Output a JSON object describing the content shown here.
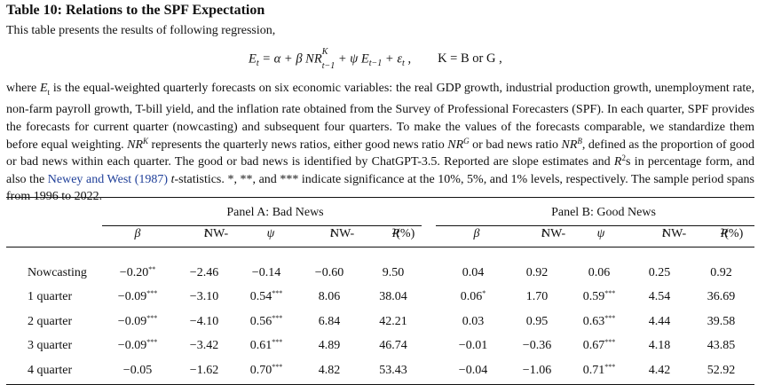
{
  "title": "Table 10: Relations to the SPF Expectation",
  "intro": "This table presents the results of following regression,",
  "equation": {
    "lhs": "E",
    "lhs_sub": "t",
    "eq": " = α + β NR",
    "nr_sup": "K",
    "nr_sub": "t−1",
    "mid": " + ψ E",
    "e_sub": "t−1",
    "eps": " + ε",
    "eps_sub": "t",
    "comma": " ,",
    "k_text": "K = B or G ,"
  },
  "body": {
    "p1": "where ",
    "p1_sym": "E",
    "p1_sub": "t",
    "p2": " is the equal-weighted quarterly forecasts on six economic variables: the real GDP growth, industrial production growth, unemployment rate, non-farm payroll growth, T-bill yield, and the inflation rate obtained from the Survey of Professional Forecasters (SPF). In each quarter, SPF provides the forecasts for current quarter (nowcasting) and subsequent four quarters. To make the values of the forecasts comparable, we standardize them before equal weighting. ",
    "nrk": "NR",
    "nrk_sup": "K",
    "p3": " represents the quarterly news ratios, either good news ratio ",
    "nrg": "NR",
    "nrg_sup": "G",
    "p4": " or bad news ratio ",
    "nrb": "NR",
    "nrb_sup": "B",
    "p5": ", defined as the proportion of good or bad news within each quarter. The good or bad news is identified by ChatGPT-3.5. Reported are slope estimates and ",
    "r2": "R",
    "r2_sup": "2",
    "p6": "s in percentage form, and also the ",
    "cite": "Newey and West (1987)",
    "p7_t": "t",
    "p7": "-statistics. *, **, and *** indicate significance at the 10%, 5%, and 1% levels, respectively. The sample period spans from 1996 to 2022."
  },
  "table": {
    "panel_a": "Panel A: Bad News",
    "panel_b": "Panel B: Good News",
    "columns": [
      "β",
      "NW-",
      "ψ",
      "NW-",
      "R",
      "β",
      "NW-",
      "ψ",
      "NW-",
      "R"
    ],
    "col_t": "t",
    "col_r2_sup": "2",
    "col_r2_pct": " (%)",
    "rows": [
      {
        "label": "Nowcasting",
        "a_beta": "−0.20",
        "a_beta_s": "**",
        "a_nw1": "−2.46",
        "a_psi": "−0.14",
        "a_psi_s": "",
        "a_nw2": "−0.60",
        "a_r2": "9.50",
        "b_beta": "0.04",
        "b_beta_s": "",
        "b_nw1": "0.92",
        "b_psi": "0.06",
        "b_psi_s": "",
        "b_nw2": "0.25",
        "b_r2": "0.92"
      },
      {
        "label": "1 quarter",
        "a_beta": "−0.09",
        "a_beta_s": "***",
        "a_nw1": "−3.10",
        "a_psi": "0.54",
        "a_psi_s": "***",
        "a_nw2": "8.06",
        "a_r2": "38.04",
        "b_beta": "0.06",
        "b_beta_s": "*",
        "b_nw1": "1.70",
        "b_psi": "0.59",
        "b_psi_s": "***",
        "b_nw2": "4.54",
        "b_r2": "36.69"
      },
      {
        "label": "2 quarter",
        "a_beta": "−0.09",
        "a_beta_s": "***",
        "a_nw1": "−4.10",
        "a_psi": "0.56",
        "a_psi_s": "***",
        "a_nw2": "6.84",
        "a_r2": "42.21",
        "b_beta": "0.03",
        "b_beta_s": "",
        "b_nw1": "0.95",
        "b_psi": "0.63",
        "b_psi_s": "***",
        "b_nw2": "4.44",
        "b_r2": "39.58"
      },
      {
        "label": "3 quarter",
        "a_beta": "−0.09",
        "a_beta_s": "***",
        "a_nw1": "−3.42",
        "a_psi": "0.61",
        "a_psi_s": "***",
        "a_nw2": "4.89",
        "a_r2": "46.74",
        "b_beta": "−0.01",
        "b_beta_s": "",
        "b_nw1": "−0.36",
        "b_psi": "0.67",
        "b_psi_s": "***",
        "b_nw2": "4.18",
        "b_r2": "43.85"
      },
      {
        "label": "4 quarter",
        "a_beta": "−0.05",
        "a_beta_s": "",
        "a_nw1": "−1.62",
        "a_psi": "0.70",
        "a_psi_s": "***",
        "a_nw2": "4.82",
        "a_r2": "53.43",
        "b_beta": "−0.04",
        "b_beta_s": "",
        "b_nw1": "−1.06",
        "b_psi": "0.71",
        "b_psi_s": "***",
        "b_nw2": "4.42",
        "b_r2": "52.92"
      }
    ]
  },
  "colors": {
    "citation": "#1f3f99",
    "text": "#111111"
  }
}
